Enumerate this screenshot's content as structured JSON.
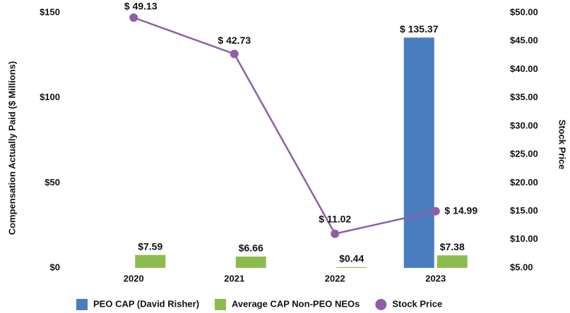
{
  "chart_data": {
    "type": "bar",
    "categories": [
      "2020",
      "2021",
      "2022",
      "2023"
    ],
    "ylabel": "Compensation Actually Paid ($ Millions)",
    "y2label": "Stock Price",
    "ylim": [
      0,
      150
    ],
    "yticks": [
      {
        "value": 0,
        "label": "$0"
      },
      {
        "value": 50,
        "label": "$50"
      },
      {
        "value": 100,
        "label": "$100"
      },
      {
        "value": 150,
        "label": "$150"
      }
    ],
    "y2lim": [
      5,
      50
    ],
    "y2ticks": [
      {
        "value": 5,
        "label": "$5.00"
      },
      {
        "value": 10,
        "label": "$10.00"
      },
      {
        "value": 15,
        "label": "$15.00"
      },
      {
        "value": 20,
        "label": "$20.00"
      },
      {
        "value": 25,
        "label": "$25.00"
      },
      {
        "value": 30,
        "label": "$30.00"
      },
      {
        "value": 35,
        "label": "$35.00"
      },
      {
        "value": 40,
        "label": "$40.00"
      },
      {
        "value": 45,
        "label": "$45.00"
      },
      {
        "value": 50,
        "label": "$50.00"
      }
    ],
    "legend": "bottom",
    "series": [
      {
        "name": "PEO CAP (David Risher)",
        "color": "#4a7dc0",
        "type": "bar",
        "values": [
          null,
          null,
          null,
          135.37
        ],
        "value_labels": [
          null,
          null,
          null,
          "$ 135.37"
        ]
      },
      {
        "name": "Average CAP Non-PEO NEOs",
        "color": "#8cbd4c",
        "type": "bar",
        "values": [
          7.59,
          6.66,
          0.44,
          7.38
        ],
        "value_labels": [
          "$7.59",
          "$6.66",
          "$0.44",
          "$7.38"
        ]
      },
      {
        "name": "Stock Price",
        "color": "#8e5fa8",
        "type": "line",
        "axis": "y2",
        "values": [
          49.13,
          42.73,
          11.02,
          14.99
        ],
        "value_labels": [
          "$ 49.13",
          "$ 42.73",
          "$ 11.02",
          "$ 14.99"
        ]
      }
    ]
  }
}
